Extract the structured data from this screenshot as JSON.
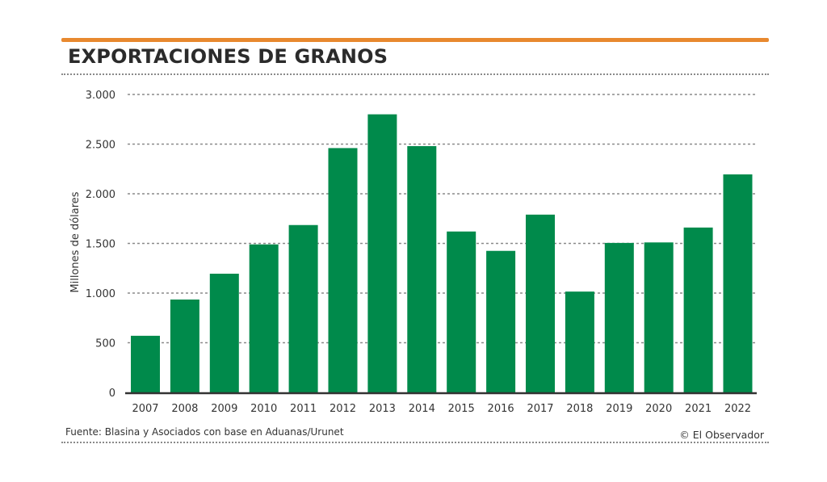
{
  "header": {
    "title": "EXPORTACIONES DE GRANOS"
  },
  "footer": {
    "source": "Fuente: Blasina y Asociados con base en Aduanas/Urunet",
    "credit": "© El Observador"
  },
  "colors": {
    "bar": "#008a4b",
    "accent_rule": "#e8892f",
    "grid": "#8a8a8a",
    "baseline": "#333333",
    "text": "#333333"
  },
  "chart_data": {
    "type": "bar",
    "title": "EXPORTACIONES DE GRANOS",
    "xlabel": "",
    "ylabel": "Millones de dólares",
    "ylim": [
      0,
      3000
    ],
    "yticks": [
      0,
      500,
      1000,
      1500,
      2000,
      2500,
      3000
    ],
    "ytick_labels": [
      "0",
      "500",
      "1.000",
      "1.500",
      "2.000",
      "2.500",
      "3.000"
    ],
    "grid": true,
    "legend": "none",
    "categories": [
      "2007",
      "2008",
      "2009",
      "2010",
      "2011",
      "2012",
      "2013",
      "2014",
      "2015",
      "2016",
      "2017",
      "2018",
      "2019",
      "2020",
      "2021",
      "2022"
    ],
    "values": [
      570,
      935,
      1195,
      1490,
      1685,
      2460,
      2800,
      2480,
      1620,
      1425,
      1790,
      1015,
      1505,
      1510,
      1660,
      2195
    ]
  }
}
